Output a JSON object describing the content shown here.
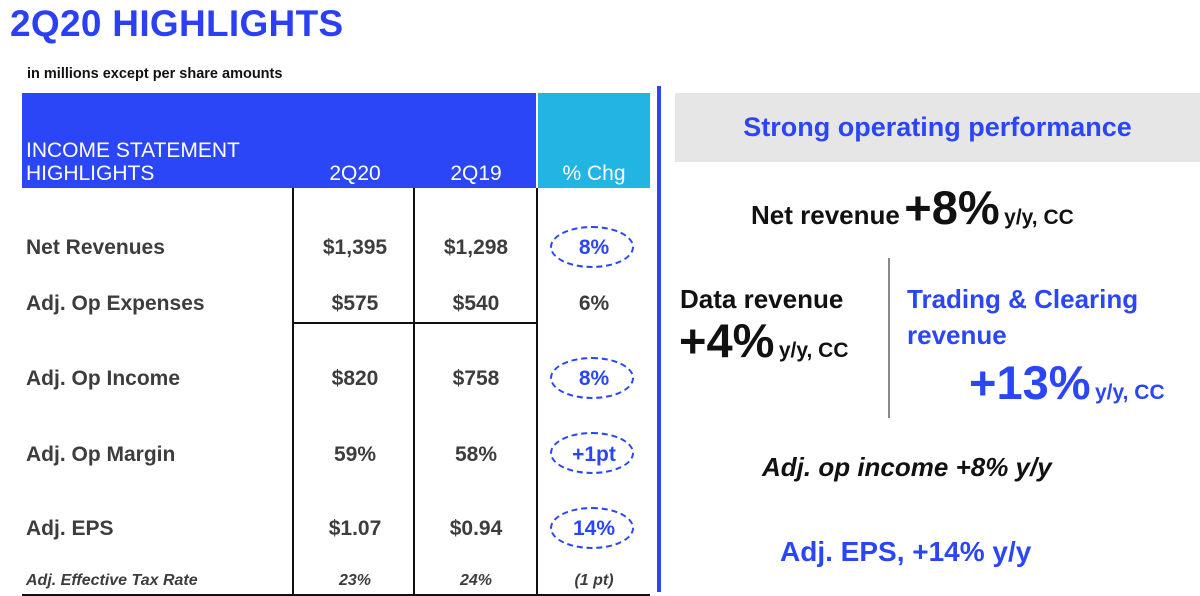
{
  "title": "2Q20 HIGHLIGHTS",
  "subtitle": "in millions except per share amounts",
  "table": {
    "header_label_line1": "INCOME STATEMENT",
    "header_label_line2": "HIGHLIGHTS",
    "col1": "2Q20",
    "col2": "2Q19",
    "col3": "% Chg",
    "rows": [
      {
        "label": "Net Revenues",
        "v1": "$1,395",
        "v2": "$1,298",
        "chg": "8%"
      },
      {
        "label": "Adj. Op Expenses",
        "v1": "$575",
        "v2": "$540",
        "chg": "6%"
      },
      {
        "label": "Adj. Op Income",
        "v1": "$820",
        "v2": "$758",
        "chg": "8%"
      },
      {
        "label": "Adj. Op Margin",
        "v1": "59%",
        "v2": "58%",
        "chg": "+1pt"
      },
      {
        "label": "Adj. EPS",
        "v1": "$1.07",
        "v2": "$0.94",
        "chg": "14%"
      },
      {
        "label": "Adj. Effective Tax Rate",
        "v1": "23%",
        "v2": "24%",
        "chg": "(1 pt)"
      }
    ]
  },
  "panel": {
    "banner": "Strong operating performance",
    "net_revenue_label": "Net revenue",
    "net_revenue_value": "+8%",
    "net_revenue_suffix": "y/y, CC",
    "data_revenue_label": "Data revenue",
    "data_revenue_value": "+4%",
    "data_revenue_suffix": "y/y, CC",
    "trading_label_line1": "Trading & Clearing",
    "trading_label_line2": "revenue",
    "trading_value": "+13%",
    "trading_suffix": "y/y, CC",
    "op_income": "Adj. op income +8% y/y",
    "eps": "Adj. EPS, +14% y/y"
  },
  "colors": {
    "brand_blue": "#2b46f6",
    "header_cyan": "#22b4e3",
    "banner_gray": "#e6e6e6"
  }
}
